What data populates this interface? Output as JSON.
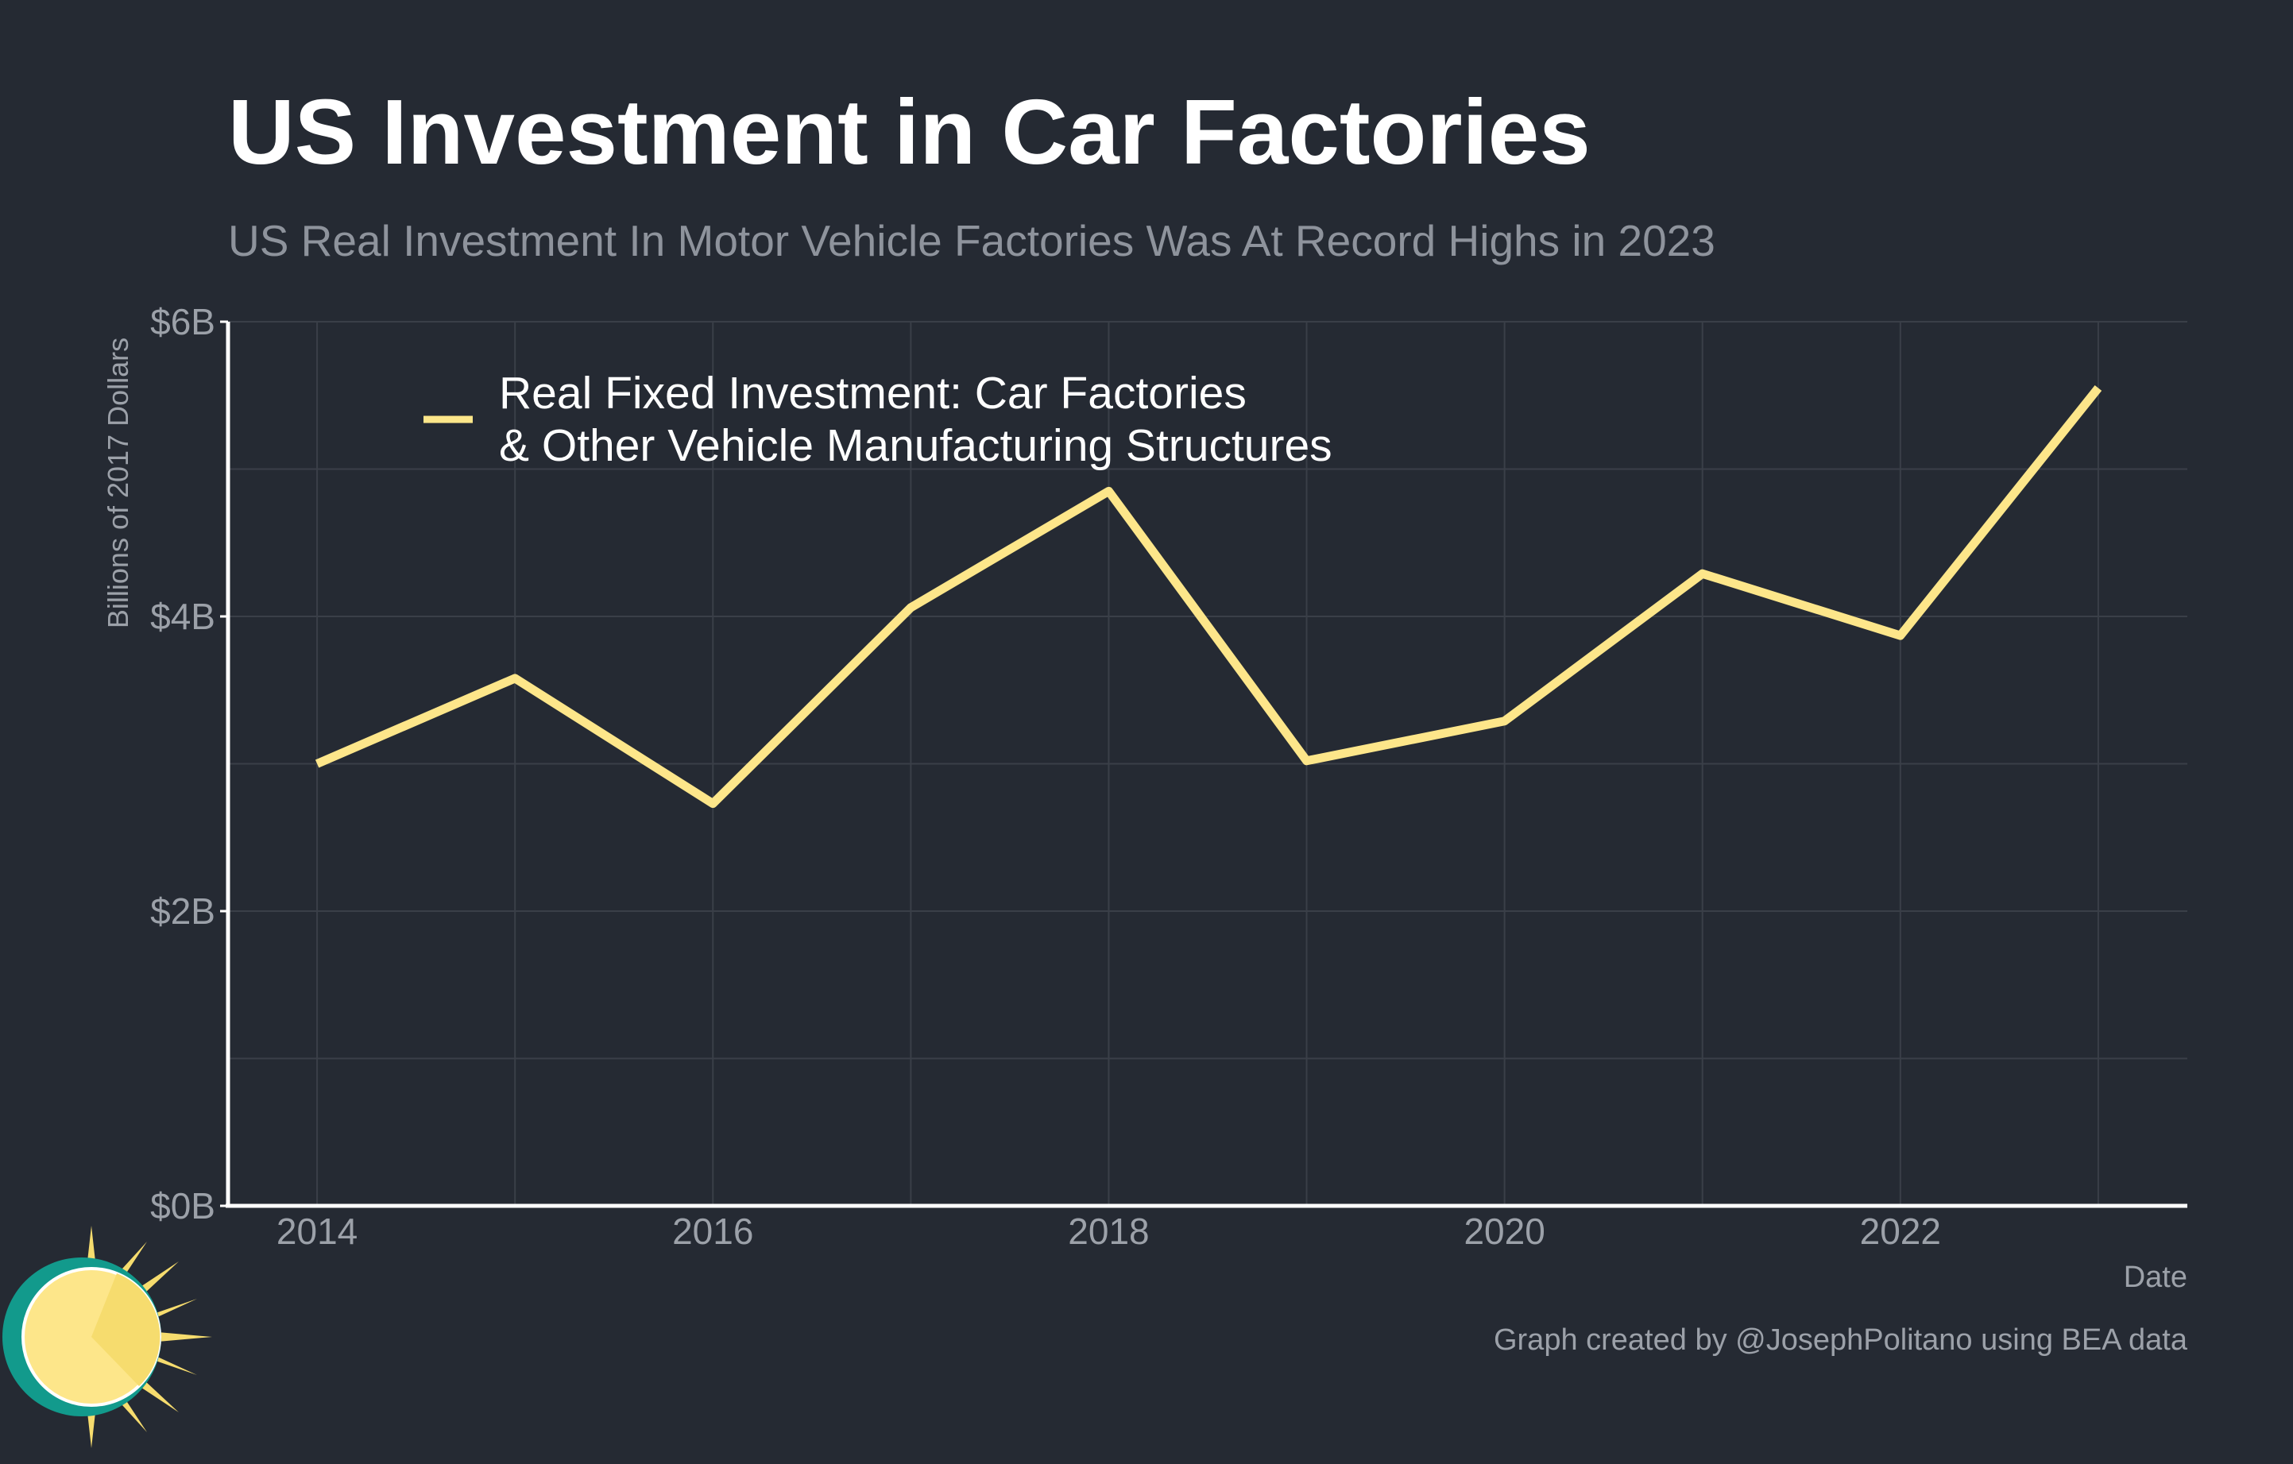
{
  "header": {
    "title": "US Investment in Car Factories",
    "subtitle": "US Real Investment In Motor Vehicle Factories Was At Record Highs in 2023"
  },
  "footer": {
    "credit": "Graph created by @JosephPolitano using BEA data"
  },
  "colors": {
    "background": "#252a33",
    "line": "#fde68a",
    "grid": "#3a3f48",
    "axis": "#ffffff",
    "tick_text": "#9ca1a9"
  },
  "chart_data": {
    "type": "line",
    "title": "US Investment in Car Factories",
    "subtitle": "US Real Investment In Motor Vehicle Factories Was At Record Highs in 2023",
    "xlabel": "Date",
    "ylabel": "Billions of 2017 Dollars",
    "x": [
      2014,
      2015,
      2016,
      2017,
      2018,
      2019,
      2020,
      2021,
      2022,
      2023
    ],
    "series": [
      {
        "name": "Real Fixed Investment: Car Factories & Other Vehicle Manufacturing Structures",
        "legend_lines": [
          "Real Fixed Investment: Car Factories",
          "& Other Vehicle Manufacturing Structures"
        ],
        "color": "#fde68a",
        "values": [
          3.0,
          3.58,
          2.73,
          4.06,
          4.85,
          3.02,
          3.29,
          4.29,
          3.87,
          5.55
        ]
      }
    ],
    "xlim": [
      2013.55,
      2023.45
    ],
    "ylim": [
      0,
      6
    ],
    "x_ticks": [
      2014,
      2016,
      2018,
      2020,
      2022
    ],
    "x_tick_labels": [
      "2014",
      "2016",
      "2018",
      "2020",
      "2022"
    ],
    "y_ticks": [
      0,
      2,
      4,
      6
    ],
    "y_tick_labels": [
      "$0B",
      "$2B",
      "$4B",
      "$6B"
    ],
    "grid": true,
    "legend_position": "top-left"
  }
}
